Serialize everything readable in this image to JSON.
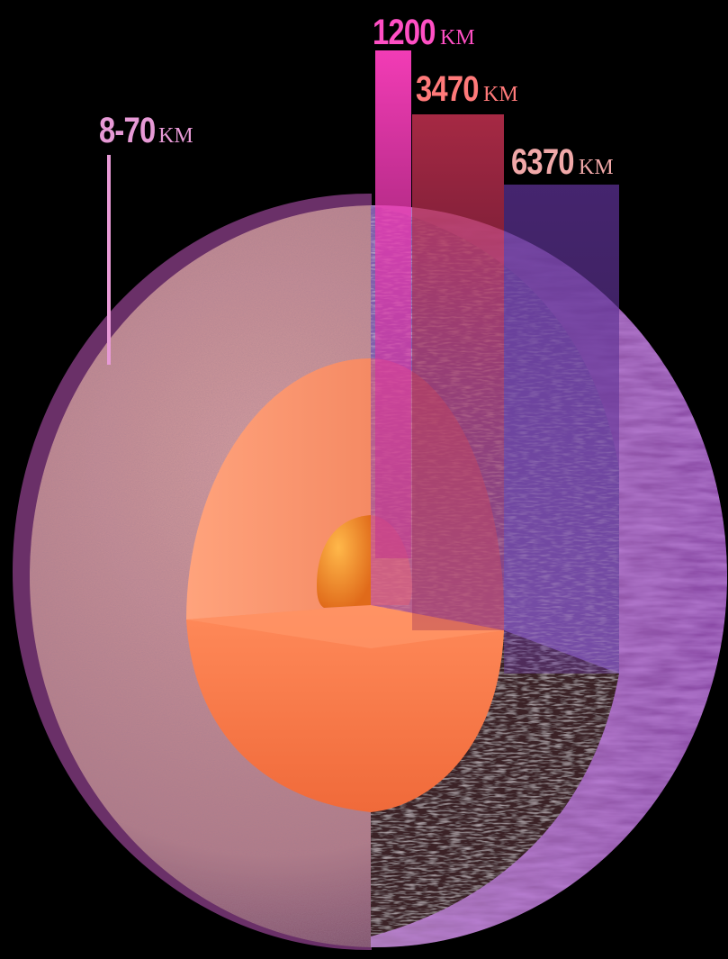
{
  "labels": {
    "crust": {
      "value": "8-70",
      "unit": "KM"
    },
    "inner_core": {
      "value": "1200",
      "unit": "KM"
    },
    "outer_core": {
      "value": "3470",
      "unit": "KM"
    },
    "mantle": {
      "value": "6370",
      "unit": "KM"
    }
  },
  "colors": {
    "background": "#000000",
    "crust_label": "#e79ad6",
    "inner_core_label": "#ff4fc4",
    "outer_core_label": "#ff7a7a",
    "mantle_label": "#f0a8a8",
    "inner_core": "#f08a2e",
    "outer_core": "#ff9a6a",
    "mantle_cut": "#3a2228",
    "crust_surface": "#c98d8d",
    "inner_core_band": "#ff3fbf",
    "outer_core_band": "#c2304f",
    "mantle_band": "#6a3aa0"
  }
}
